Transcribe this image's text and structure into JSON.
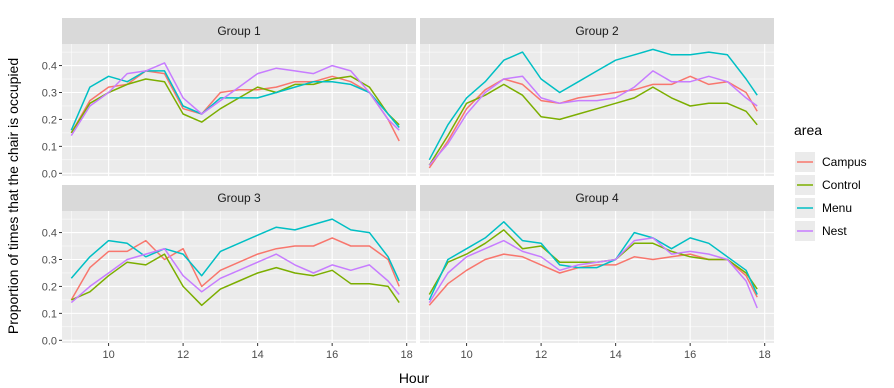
{
  "chart_data": {
    "type": "line",
    "xlabel": "Hour",
    "ylabel": "Proportion of times that the chair is occupied",
    "xlim": [
      8.75,
      18.25
    ],
    "ylim": [
      -0.01,
      0.48
    ],
    "x_ticks": [
      10,
      12,
      14,
      16,
      18
    ],
    "y_ticks": [
      0.0,
      0.1,
      0.2,
      0.3,
      0.4
    ],
    "y_tick_labels": [
      "0.0",
      "0.1",
      "0.2",
      "0.3",
      "0.4"
    ],
    "grid": true,
    "legend": {
      "title": "area",
      "position": "right",
      "entries": [
        "Campus",
        "Control",
        "Menu",
        "Nest"
      ]
    },
    "colors": {
      "Campus": "#F8766D",
      "Control": "#7CAE00",
      "Menu": "#00BFC4",
      "Nest": "#C77CFF",
      "panel_bg": "#EBEBEB",
      "strip_bg": "#D9D9D9",
      "grid": "#FFFFFF"
    },
    "panels": [
      {
        "title": "Group 1",
        "series": [
          {
            "name": "Campus",
            "x": [
              9.0,
              9.5,
              10.0,
              10.5,
              11.0,
              11.5,
              12.0,
              12.5,
              13.0,
              13.5,
              14.0,
              14.5,
              15.0,
              15.5,
              16.0,
              16.5,
              17.0,
              17.5,
              17.8
            ],
            "y": [
              0.15,
              0.27,
              0.32,
              0.33,
              0.38,
              0.37,
              0.24,
              0.22,
              0.3,
              0.31,
              0.31,
              0.32,
              0.34,
              0.34,
              0.36,
              0.34,
              0.3,
              0.2,
              0.12
            ]
          },
          {
            "name": "Control",
            "x": [
              9.0,
              9.5,
              10.0,
              10.5,
              11.0,
              11.5,
              12.0,
              12.5,
              13.0,
              13.5,
              14.0,
              14.5,
              15.0,
              15.5,
              16.0,
              16.5,
              17.0,
              17.5,
              17.8
            ],
            "y": [
              0.15,
              0.26,
              0.3,
              0.33,
              0.35,
              0.34,
              0.22,
              0.19,
              0.24,
              0.28,
              0.32,
              0.3,
              0.33,
              0.33,
              0.35,
              0.36,
              0.32,
              0.22,
              0.18
            ]
          },
          {
            "name": "Menu",
            "x": [
              9.0,
              9.5,
              10.0,
              10.5,
              11.0,
              11.5,
              12.0,
              12.5,
              13.0,
              13.5,
              14.0,
              14.5,
              15.0,
              15.5,
              16.0,
              16.5,
              17.0,
              17.5,
              17.8
            ],
            "y": [
              0.16,
              0.32,
              0.36,
              0.34,
              0.38,
              0.38,
              0.25,
              0.22,
              0.28,
              0.28,
              0.28,
              0.3,
              0.32,
              0.34,
              0.34,
              0.33,
              0.3,
              0.22,
              0.17
            ]
          },
          {
            "name": "Nest",
            "x": [
              9.0,
              9.5,
              10.0,
              10.5,
              11.0,
              11.5,
              12.0,
              12.5,
              13.0,
              13.5,
              14.0,
              14.5,
              15.0,
              15.5,
              16.0,
              16.5,
              17.0,
              17.5,
              17.8
            ],
            "y": [
              0.14,
              0.25,
              0.3,
              0.37,
              0.38,
              0.41,
              0.28,
              0.22,
              0.27,
              0.32,
              0.37,
              0.39,
              0.38,
              0.37,
              0.4,
              0.38,
              0.3,
              0.2,
              0.16
            ]
          }
        ]
      },
      {
        "title": "Group 2",
        "series": [
          {
            "name": "Campus",
            "x": [
              9.0,
              9.5,
              10.0,
              10.5,
              11.0,
              11.5,
              12.0,
              12.5,
              13.0,
              13.5,
              14.0,
              14.5,
              15.0,
              15.5,
              16.0,
              16.5,
              17.0,
              17.5,
              17.8
            ],
            "y": [
              0.02,
              0.12,
              0.24,
              0.31,
              0.35,
              0.33,
              0.27,
              0.26,
              0.28,
              0.29,
              0.3,
              0.31,
              0.33,
              0.33,
              0.36,
              0.33,
              0.34,
              0.3,
              0.23
            ]
          },
          {
            "name": "Control",
            "x": [
              9.0,
              9.5,
              10.0,
              10.5,
              11.0,
              11.5,
              12.0,
              12.5,
              13.0,
              13.5,
              14.0,
              14.5,
              15.0,
              15.5,
              16.0,
              16.5,
              17.0,
              17.5,
              17.8
            ],
            "y": [
              0.03,
              0.14,
              0.26,
              0.29,
              0.33,
              0.29,
              0.21,
              0.2,
              0.22,
              0.24,
              0.26,
              0.28,
              0.32,
              0.28,
              0.25,
              0.26,
              0.26,
              0.23,
              0.18
            ]
          },
          {
            "name": "Menu",
            "x": [
              9.0,
              9.5,
              10.0,
              10.5,
              11.0,
              11.5,
              12.0,
              12.5,
              13.0,
              13.5,
              14.0,
              14.5,
              15.0,
              15.5,
              16.0,
              16.5,
              17.0,
              17.5,
              17.8
            ],
            "y": [
              0.05,
              0.18,
              0.28,
              0.34,
              0.42,
              0.45,
              0.35,
              0.3,
              0.34,
              0.38,
              0.42,
              0.44,
              0.46,
              0.44,
              0.44,
              0.45,
              0.44,
              0.35,
              0.29
            ]
          },
          {
            "name": "Nest",
            "x": [
              9.0,
              9.5,
              10.0,
              10.5,
              11.0,
              11.5,
              12.0,
              12.5,
              13.0,
              13.5,
              14.0,
              14.5,
              15.0,
              15.5,
              16.0,
              16.5,
              17.0,
              17.5,
              17.8
            ],
            "y": [
              0.03,
              0.11,
              0.22,
              0.3,
              0.35,
              0.36,
              0.28,
              0.26,
              0.27,
              0.27,
              0.28,
              0.32,
              0.38,
              0.34,
              0.34,
              0.36,
              0.34,
              0.28,
              0.25
            ]
          }
        ]
      },
      {
        "title": "Group 3",
        "series": [
          {
            "name": "Campus",
            "x": [
              9.0,
              9.5,
              10.0,
              10.5,
              11.0,
              11.5,
              12.0,
              12.5,
              13.0,
              13.5,
              14.0,
              14.5,
              15.0,
              15.5,
              16.0,
              16.5,
              17.0,
              17.5,
              17.8
            ],
            "y": [
              0.15,
              0.27,
              0.33,
              0.33,
              0.37,
              0.3,
              0.34,
              0.2,
              0.26,
              0.29,
              0.32,
              0.34,
              0.35,
              0.35,
              0.38,
              0.35,
              0.35,
              0.3,
              0.2
            ]
          },
          {
            "name": "Control",
            "x": [
              9.0,
              9.5,
              10.0,
              10.5,
              11.0,
              11.5,
              12.0,
              12.5,
              13.0,
              13.5,
              14.0,
              14.5,
              15.0,
              15.5,
              16.0,
              16.5,
              17.0,
              17.5,
              17.8
            ],
            "y": [
              0.15,
              0.18,
              0.24,
              0.29,
              0.28,
              0.32,
              0.2,
              0.13,
              0.19,
              0.22,
              0.25,
              0.27,
              0.25,
              0.24,
              0.26,
              0.21,
              0.21,
              0.2,
              0.14
            ]
          },
          {
            "name": "Menu",
            "x": [
              9.0,
              9.5,
              10.0,
              10.5,
              11.0,
              11.5,
              12.0,
              12.5,
              13.0,
              13.5,
              14.0,
              14.5,
              15.0,
              15.5,
              16.0,
              16.5,
              17.0,
              17.5,
              17.8
            ],
            "y": [
              0.23,
              0.31,
              0.37,
              0.36,
              0.31,
              0.34,
              0.32,
              0.24,
              0.33,
              0.36,
              0.39,
              0.42,
              0.41,
              0.43,
              0.45,
              0.41,
              0.4,
              0.31,
              0.22
            ]
          },
          {
            "name": "Nest",
            "x": [
              9.0,
              9.5,
              10.0,
              10.5,
              11.0,
              11.5,
              12.0,
              12.5,
              13.0,
              13.5,
              14.0,
              14.5,
              15.0,
              15.5,
              16.0,
              16.5,
              17.0,
              17.5,
              17.8
            ],
            "y": [
              0.14,
              0.2,
              0.25,
              0.3,
              0.32,
              0.34,
              0.24,
              0.18,
              0.23,
              0.26,
              0.29,
              0.32,
              0.28,
              0.25,
              0.28,
              0.26,
              0.28,
              0.22,
              0.17
            ]
          }
        ]
      },
      {
        "title": "Group 4",
        "series": [
          {
            "name": "Campus",
            "x": [
              9.0,
              9.5,
              10.0,
              10.5,
              11.0,
              11.5,
              12.0,
              12.5,
              13.0,
              13.5,
              14.0,
              14.5,
              15.0,
              15.5,
              16.0,
              16.5,
              17.0,
              17.5,
              17.8
            ],
            "y": [
              0.13,
              0.21,
              0.26,
              0.3,
              0.32,
              0.31,
              0.28,
              0.25,
              0.27,
              0.28,
              0.28,
              0.31,
              0.3,
              0.31,
              0.32,
              0.3,
              0.3,
              0.24,
              0.16
            ]
          },
          {
            "name": "Control",
            "x": [
              9.0,
              9.5,
              10.0,
              10.5,
              11.0,
              11.5,
              12.0,
              12.5,
              13.0,
              13.5,
              14.0,
              14.5,
              15.0,
              15.5,
              16.0,
              16.5,
              17.0,
              17.5,
              17.8
            ],
            "y": [
              0.17,
              0.29,
              0.32,
              0.36,
              0.41,
              0.34,
              0.35,
              0.29,
              0.29,
              0.29,
              0.3,
              0.36,
              0.36,
              0.33,
              0.31,
              0.3,
              0.3,
              0.25,
              0.19
            ]
          },
          {
            "name": "Menu",
            "x": [
              9.0,
              9.5,
              10.0,
              10.5,
              11.0,
              11.5,
              12.0,
              12.5,
              13.0,
              13.5,
              14.0,
              14.5,
              15.0,
              15.5,
              16.0,
              16.5,
              17.0,
              17.5,
              17.8
            ],
            "y": [
              0.15,
              0.3,
              0.34,
              0.38,
              0.44,
              0.37,
              0.36,
              0.28,
              0.27,
              0.27,
              0.3,
              0.4,
              0.38,
              0.34,
              0.38,
              0.36,
              0.31,
              0.26,
              0.17
            ]
          },
          {
            "name": "Nest",
            "x": [
              9.0,
              9.5,
              10.0,
              10.5,
              11.0,
              11.5,
              12.0,
              12.5,
              13.0,
              13.5,
              14.0,
              14.5,
              15.0,
              15.5,
              16.0,
              16.5,
              17.0,
              17.5,
              17.8
            ],
            "y": [
              0.14,
              0.25,
              0.31,
              0.34,
              0.37,
              0.33,
              0.31,
              0.26,
              0.28,
              0.29,
              0.3,
              0.37,
              0.38,
              0.32,
              0.33,
              0.32,
              0.3,
              0.22,
              0.12
            ]
          }
        ]
      }
    ]
  }
}
